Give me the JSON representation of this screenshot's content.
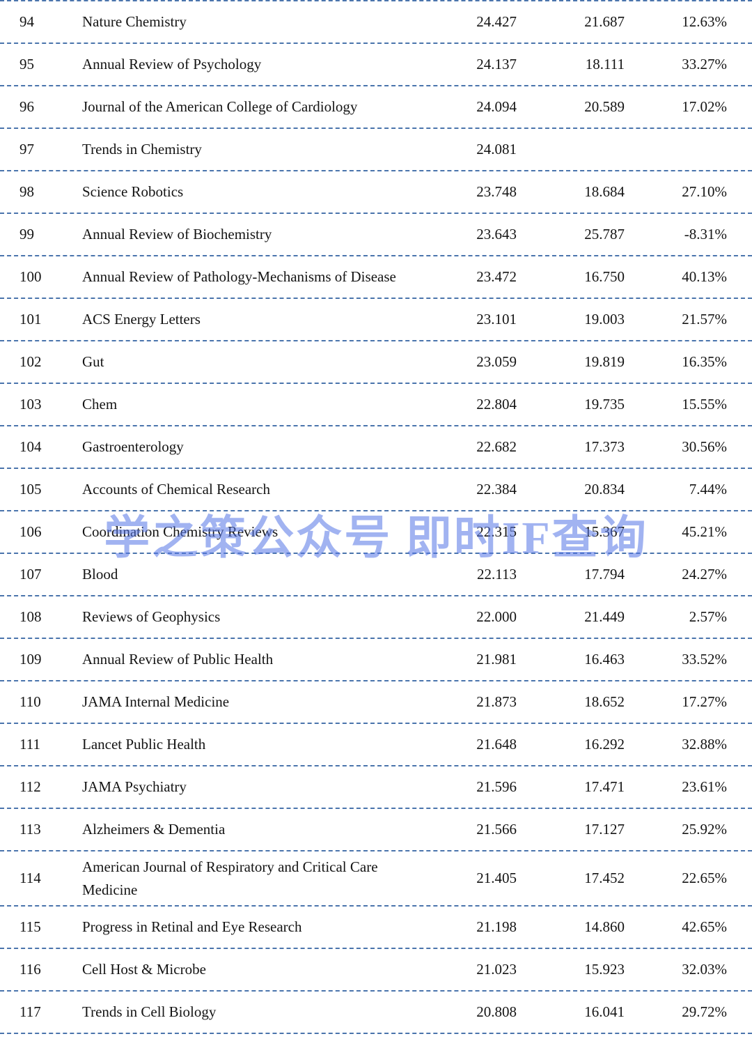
{
  "watermark": {
    "text": "学之策公众号 即时IF查询",
    "color": "#5474e6"
  },
  "style": {
    "separator_color": "#4a74ac",
    "text_color": "#141414"
  },
  "chart_data": {
    "type": "table",
    "columns": [
      "rank",
      "journal_name",
      "impact_factor",
      "previous_impact_factor",
      "change_percent"
    ],
    "rows": [
      {
        "rank": "94",
        "name": "Nature Chemistry",
        "if_new": "24.427",
        "if_old": "21.687",
        "change": "12.63%"
      },
      {
        "rank": "95",
        "name": "Annual Review of Psychology",
        "if_new": "24.137",
        "if_old": "18.111",
        "change": "33.27%"
      },
      {
        "rank": "96",
        "name": "Journal of the American College of Cardiology",
        "if_new": "24.094",
        "if_old": "20.589",
        "change": "17.02%"
      },
      {
        "rank": "97",
        "name": "Trends in Chemistry",
        "if_new": "24.081",
        "if_old": "",
        "change": ""
      },
      {
        "rank": "98",
        "name": "Science Robotics",
        "if_new": "23.748",
        "if_old": "18.684",
        "change": "27.10%"
      },
      {
        "rank": "99",
        "name": "Annual Review of Biochemistry",
        "if_new": "23.643",
        "if_old": "25.787",
        "change": "-8.31%"
      },
      {
        "rank": "100",
        "name": "Annual Review of Pathology-Mechanisms of Disease",
        "if_new": "23.472",
        "if_old": "16.750",
        "change": "40.13%"
      },
      {
        "rank": "101",
        "name": "ACS Energy Letters",
        "if_new": "23.101",
        "if_old": "19.003",
        "change": "21.57%"
      },
      {
        "rank": "102",
        "name": "Gut",
        "if_new": "23.059",
        "if_old": "19.819",
        "change": "16.35%"
      },
      {
        "rank": "103",
        "name": "Chem",
        "if_new": "22.804",
        "if_old": "19.735",
        "change": "15.55%"
      },
      {
        "rank": "104",
        "name": "Gastroenterology",
        "if_new": "22.682",
        "if_old": "17.373",
        "change": "30.56%"
      },
      {
        "rank": "105",
        "name": "Accounts of Chemical Research",
        "if_new": "22.384",
        "if_old": "20.834",
        "change": "7.44%"
      },
      {
        "rank": "106",
        "name": "Coordination Chemistry Reviews",
        "if_new": "22.315",
        "if_old": "15.367",
        "change": "45.21%"
      },
      {
        "rank": "107",
        "name": "Blood",
        "if_new": "22.113",
        "if_old": "17.794",
        "change": "24.27%"
      },
      {
        "rank": "108",
        "name": "Reviews of Geophysics",
        "if_new": "22.000",
        "if_old": "21.449",
        "change": "2.57%"
      },
      {
        "rank": "109",
        "name": "Annual Review of Public Health",
        "if_new": "21.981",
        "if_old": "16.463",
        "change": "33.52%"
      },
      {
        "rank": "110",
        "name": "JAMA Internal Medicine",
        "if_new": "21.873",
        "if_old": "18.652",
        "change": "17.27%"
      },
      {
        "rank": "111",
        "name": "Lancet Public Health",
        "if_new": "21.648",
        "if_old": "16.292",
        "change": "32.88%"
      },
      {
        "rank": "112",
        "name": "JAMA Psychiatry",
        "if_new": "21.596",
        "if_old": "17.471",
        "change": "23.61%"
      },
      {
        "rank": "113",
        "name": "Alzheimers & Dementia",
        "if_new": "21.566",
        "if_old": "17.127",
        "change": "25.92%"
      },
      {
        "rank": "114",
        "name": "American Journal of Respiratory and Critical Care Medicine",
        "if_new": "21.405",
        "if_old": "17.452",
        "change": "22.65%"
      },
      {
        "rank": "115",
        "name": "Progress in Retinal and Eye Research",
        "if_new": "21.198",
        "if_old": "14.860",
        "change": "42.65%"
      },
      {
        "rank": "116",
        "name": "Cell Host & Microbe",
        "if_new": "21.023",
        "if_old": "15.923",
        "change": "32.03%"
      },
      {
        "rank": "117",
        "name": "Trends in Cell Biology",
        "if_new": "20.808",
        "if_old": "16.041",
        "change": "29.72%"
      }
    ]
  }
}
